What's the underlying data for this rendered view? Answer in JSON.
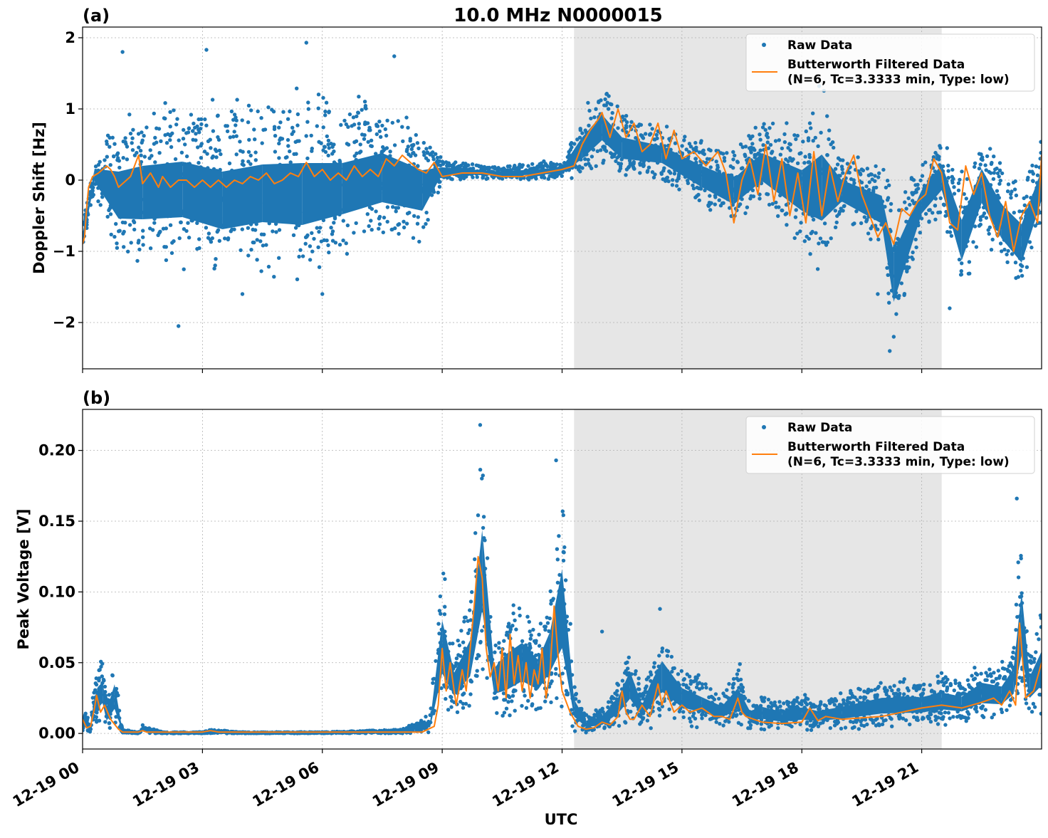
{
  "figure": {
    "title": "10.0 MHz N0000015",
    "xlabel": "UTC",
    "x_tick_labels": [
      "12-19 00",
      "12-19 03",
      "12-19 06",
      "12-19 09",
      "12-19 12",
      "12-19 15",
      "12-19 18",
      "12-19 21"
    ]
  },
  "colors": {
    "raw": "#1f77b4",
    "filtered": "#ff7f0e",
    "shade": "#e6e6e6",
    "grid": "#b0b0b0"
  },
  "legend": {
    "raw_label": "Raw Data",
    "filtered_label_line1": "Butterworth Filtered Data",
    "filtered_label_line2": "(N=6, Tc=3.3333 min, Type: low)",
    "placement": "top-right"
  },
  "chart_data": [
    {
      "type": "scatter",
      "panel_label": "(a)",
      "ylabel": "Doppler Shift [Hz]",
      "x_unit": "UTC hours on 12-19",
      "xlim": [
        0,
        24
      ],
      "ylim": [
        -2.65,
        2.15
      ],
      "y_ticks": [
        2,
        1,
        0,
        -1,
        -2
      ],
      "y_tick_labels": [
        "2",
        "1",
        "0",
        "−1",
        "−2"
      ],
      "grid": true,
      "shaded_interval": [
        12.3,
        21.5
      ],
      "series": [
        {
          "name": "Raw Data",
          "kind": "points",
          "envelope": {
            "x": [
              0,
              0.3,
              0.9,
              1.5,
              2.5,
              3.5,
              4.5,
              5.5,
              6.5,
              7.5,
              8.5,
              9.0,
              10.5,
              12.0,
              12.5,
              13.0,
              13.5,
              14.5,
              15.5,
              16.3,
              17.0,
              18.0,
              18.5,
              19.0,
              20.0,
              20.3,
              21.0,
              21.5,
              22.0,
              22.5,
              23.0,
              23.5,
              24.0
            ],
            "upper": [
              -0.6,
              0.4,
              1.0,
              1.2,
              1.3,
              1.2,
              1.3,
              1.4,
              1.2,
              1.3,
              0.9,
              0.3,
              0.2,
              0.3,
              1.0,
              1.4,
              1.0,
              0.8,
              0.6,
              0.5,
              0.9,
              0.9,
              1.6,
              0.4,
              0.3,
              -0.1,
              0.3,
              0.7,
              0.2,
              0.8,
              0.3,
              0.1,
              0.7
            ],
            "lower": [
              -1.0,
              -0.2,
              -1.2,
              -1.3,
              -1.3,
              -1.5,
              -1.4,
              -1.5,
              -1.2,
              -1.0,
              -1.0,
              0.0,
              0.0,
              0.0,
              0.0,
              0.2,
              0.0,
              0.0,
              -0.4,
              -0.7,
              -0.4,
              -1.0,
              -1.5,
              -0.6,
              -1.0,
              -2.4,
              -0.8,
              -0.5,
              -1.7,
              -0.8,
              -1.3,
              -1.7,
              -0.7
            ]
          },
          "outliers": [
            {
              "x": 1.0,
              "y": 1.8
            },
            {
              "x": 2.4,
              "y": -2.05
            },
            {
              "x": 3.1,
              "y": 1.83
            },
            {
              "x": 5.6,
              "y": 1.93
            },
            {
              "x": 7.8,
              "y": 1.74
            },
            {
              "x": 20.2,
              "y": -2.4
            },
            {
              "x": 20.3,
              "y": -2.2
            },
            {
              "x": 19.9,
              "y": -1.6
            },
            {
              "x": 21.7,
              "y": -1.8
            },
            {
              "x": 4.0,
              "y": -1.6
            },
            {
              "x": 6.0,
              "y": -1.6
            }
          ]
        },
        {
          "name": "Butterworth Filtered Data",
          "kind": "line",
          "x": [
            0,
            0.05,
            0.1,
            0.15,
            0.25,
            0.4,
            0.6,
            0.7,
            0.8,
            0.9,
            1.0,
            1.2,
            1.4,
            1.5,
            1.7,
            1.9,
            2.0,
            2.2,
            2.4,
            2.6,
            2.8,
            3.0,
            3.2,
            3.4,
            3.6,
            3.8,
            4.0,
            4.2,
            4.4,
            4.6,
            4.8,
            5.0,
            5.2,
            5.4,
            5.6,
            5.8,
            6.0,
            6.2,
            6.4,
            6.6,
            6.8,
            7.0,
            7.2,
            7.4,
            7.6,
            7.8,
            8.0,
            8.2,
            8.4,
            8.6,
            8.8,
            9.0,
            9.5,
            10.0,
            10.5,
            11.0,
            11.5,
            12.0,
            12.3,
            12.5,
            12.7,
            12.9,
            13.0,
            13.2,
            13.4,
            13.6,
            13.8,
            14.0,
            14.2,
            14.4,
            14.6,
            14.8,
            15.0,
            15.3,
            15.6,
            15.9,
            16.1,
            16.3,
            16.5,
            16.7,
            16.9,
            17.1,
            17.3,
            17.5,
            17.7,
            17.9,
            18.1,
            18.3,
            18.5,
            18.7,
            18.9,
            19.1,
            19.3,
            19.5,
            19.7,
            19.9,
            20.1,
            20.3,
            20.5,
            20.7,
            20.9,
            21.1,
            21.3,
            21.5,
            21.7,
            21.9,
            22.1,
            22.3,
            22.5,
            22.7,
            22.9,
            23.1,
            23.3,
            23.5,
            23.7,
            23.9,
            24.0
          ],
          "y": [
            -0.9,
            -0.8,
            -0.4,
            -0.1,
            0.05,
            0.1,
            0.2,
            0.15,
            0.05,
            -0.1,
            -0.05,
            0.05,
            0.35,
            -0.05,
            0.1,
            -0.1,
            0.05,
            -0.1,
            0.0,
            0.0,
            -0.1,
            0.0,
            -0.1,
            0.0,
            -0.1,
            0.0,
            -0.05,
            0.05,
            0.0,
            0.1,
            -0.05,
            0.0,
            0.1,
            0.05,
            0.25,
            0.05,
            0.15,
            0.0,
            0.1,
            0.0,
            0.2,
            0.05,
            0.15,
            0.05,
            0.3,
            0.2,
            0.35,
            0.25,
            0.15,
            0.1,
            0.25,
            0.05,
            0.1,
            0.1,
            0.05,
            0.05,
            0.1,
            0.15,
            0.2,
            0.5,
            0.7,
            0.85,
            0.95,
            0.6,
            1.0,
            0.6,
            0.8,
            0.4,
            0.5,
            0.8,
            0.3,
            0.7,
            0.3,
            0.4,
            0.2,
            0.4,
            0.1,
            -0.6,
            0.0,
            0.3,
            -0.2,
            0.5,
            -0.3,
            0.3,
            -0.5,
            0.1,
            -0.6,
            0.4,
            -0.5,
            0.2,
            -0.3,
            0.1,
            0.35,
            -0.2,
            -0.5,
            -0.8,
            -0.6,
            -0.9,
            -0.4,
            -0.5,
            -0.3,
            -0.2,
            0.3,
            0.1,
            -0.6,
            -0.7,
            0.2,
            -0.2,
            0.1,
            -0.5,
            -0.8,
            -0.3,
            -1.0,
            -0.5,
            -0.3,
            -0.6,
            0.35
          ]
        }
      ]
    },
    {
      "type": "scatter",
      "panel_label": "(b)",
      "ylabel": "Peak Voltage [V]",
      "x_unit": "UTC hours on 12-19",
      "xlim": [
        0,
        24
      ],
      "ylim": [
        -0.011,
        0.229
      ],
      "y_ticks": [
        0.2,
        0.15,
        0.1,
        0.05,
        0.0
      ],
      "y_tick_labels": [
        "0.20",
        "0.15",
        "0.10",
        "0.05",
        "0.00"
      ],
      "grid": true,
      "shaded_interval": [
        12.3,
        21.5
      ],
      "series": [
        {
          "name": "Raw Data",
          "kind": "points",
          "envelope": {
            "x": [
              0,
              0.2,
              0.3,
              0.5,
              0.6,
              0.8,
              1.0,
              1.4,
              1.5,
              2.0,
              3.0,
              3.2,
              4.0,
              6.0,
              8.0,
              8.7,
              9.0,
              9.3,
              9.7,
              10.0,
              10.3,
              10.6,
              11.0,
              11.4,
              11.7,
              12.0,
              12.3,
              12.6,
              13.0,
              13.4,
              13.7,
              14.0,
              14.2,
              14.5,
              15.0,
              15.5,
              16.0,
              16.4,
              16.7,
              17.0,
              17.5,
              18.0,
              18.4,
              19.0,
              20.0,
              21.0,
              21.5,
              22.0,
              22.5,
              23.0,
              23.3,
              23.5,
              23.7,
              24.0
            ],
            "upper": [
              0.017,
              0.012,
              0.04,
              0.06,
              0.025,
              0.058,
              0.003,
              0.001,
              0.006,
              0.001,
              0.001,
              0.003,
              0.001,
              0.001,
              0.003,
              0.015,
              0.13,
              0.065,
              0.1,
              0.22,
              0.07,
              0.09,
              0.1,
              0.08,
              0.11,
              0.19,
              0.04,
              0.015,
              0.02,
              0.04,
              0.07,
              0.03,
              0.055,
              0.08,
              0.05,
              0.04,
              0.03,
              0.05,
              0.025,
              0.03,
              0.025,
              0.03,
              0.025,
              0.03,
              0.04,
              0.04,
              0.045,
              0.04,
              0.055,
              0.05,
              0.07,
              0.16,
              0.06,
              0.09
            ],
            "lower": [
              0.0,
              0.0,
              0.005,
              0.005,
              0.002,
              0.0,
              0.0,
              0.0,
              0.0,
              0.0,
              0.0,
              0.0,
              0.0,
              0.0,
              0.0,
              0.0,
              0.005,
              0.01,
              0.015,
              0.03,
              0.01,
              0.005,
              0.01,
              0.01,
              0.015,
              0.005,
              0.0,
              0.0,
              0.0,
              0.003,
              0.005,
              0.005,
              0.003,
              0.008,
              0.005,
              0.004,
              0.003,
              0.005,
              0.002,
              0.002,
              0.001,
              0.001,
              0.002,
              0.002,
              0.003,
              0.004,
              0.005,
              0.005,
              0.007,
              0.008,
              0.01,
              0.01,
              0.01,
              0.01
            ]
          },
          "outliers": [
            {
              "x": 9.95,
              "y": 0.218
            },
            {
              "x": 11.85,
              "y": 0.193
            },
            {
              "x": 23.38,
              "y": 0.166
            },
            {
              "x": 13.0,
              "y": 0.072
            },
            {
              "x": 14.45,
              "y": 0.088
            },
            {
              "x": 16.45,
              "y": 0.049
            }
          ]
        },
        {
          "name": "Butterworth Filtered Data",
          "kind": "line",
          "x": [
            0,
            0.1,
            0.2,
            0.3,
            0.35,
            0.45,
            0.55,
            0.7,
            0.9,
            1.0,
            1.4,
            1.5,
            1.6,
            2.0,
            3.0,
            3.2,
            3.4,
            4.0,
            8.5,
            8.8,
            8.9,
            9.0,
            9.1,
            9.2,
            9.35,
            9.5,
            9.6,
            9.7,
            9.8,
            9.9,
            10.0,
            10.1,
            10.2,
            10.3,
            10.4,
            10.5,
            10.6,
            10.7,
            10.8,
            10.9,
            11.0,
            11.1,
            11.2,
            11.3,
            11.4,
            11.5,
            11.6,
            11.7,
            11.8,
            11.9,
            12.0,
            12.2,
            12.4,
            12.6,
            12.8,
            13.0,
            13.2,
            13.4,
            13.5,
            13.6,
            13.7,
            13.8,
            14.0,
            14.2,
            14.4,
            14.5,
            14.6,
            14.8,
            15.0,
            15.2,
            15.5,
            15.8,
            16.0,
            16.2,
            16.4,
            16.5,
            16.6,
            16.8,
            17.0,
            17.5,
            18.0,
            18.2,
            18.4,
            18.6,
            19.0,
            19.5,
            20.0,
            20.5,
            21.0,
            21.5,
            22.0,
            22.5,
            22.8,
            23.0,
            23.2,
            23.35,
            23.45,
            23.6,
            23.8,
            24.0
          ],
          "y": [
            0.01,
            0.004,
            0.005,
            0.018,
            0.027,
            0.015,
            0.02,
            0.01,
            0.003,
            0.001,
            0.001,
            0.002,
            0.001,
            0.001,
            0.001,
            0.002,
            0.001,
            0.001,
            0.001,
            0.005,
            0.02,
            0.06,
            0.03,
            0.05,
            0.02,
            0.045,
            0.03,
            0.06,
            0.09,
            0.125,
            0.11,
            0.06,
            0.04,
            0.05,
            0.03,
            0.06,
            0.025,
            0.07,
            0.035,
            0.055,
            0.03,
            0.05,
            0.025,
            0.045,
            0.035,
            0.06,
            0.025,
            0.045,
            0.09,
            0.055,
            0.03,
            0.015,
            0.005,
            0.003,
            0.004,
            0.008,
            0.006,
            0.012,
            0.03,
            0.015,
            0.01,
            0.01,
            0.02,
            0.012,
            0.035,
            0.02,
            0.03,
            0.015,
            0.02,
            0.015,
            0.018,
            0.012,
            0.012,
            0.01,
            0.025,
            0.015,
            0.012,
            0.01,
            0.008,
            0.007,
            0.008,
            0.018,
            0.009,
            0.012,
            0.01,
            0.011,
            0.012,
            0.015,
            0.018,
            0.02,
            0.018,
            0.022,
            0.025,
            0.02,
            0.03,
            0.02,
            0.078,
            0.025,
            0.03,
            0.05
          ]
        }
      ]
    }
  ]
}
